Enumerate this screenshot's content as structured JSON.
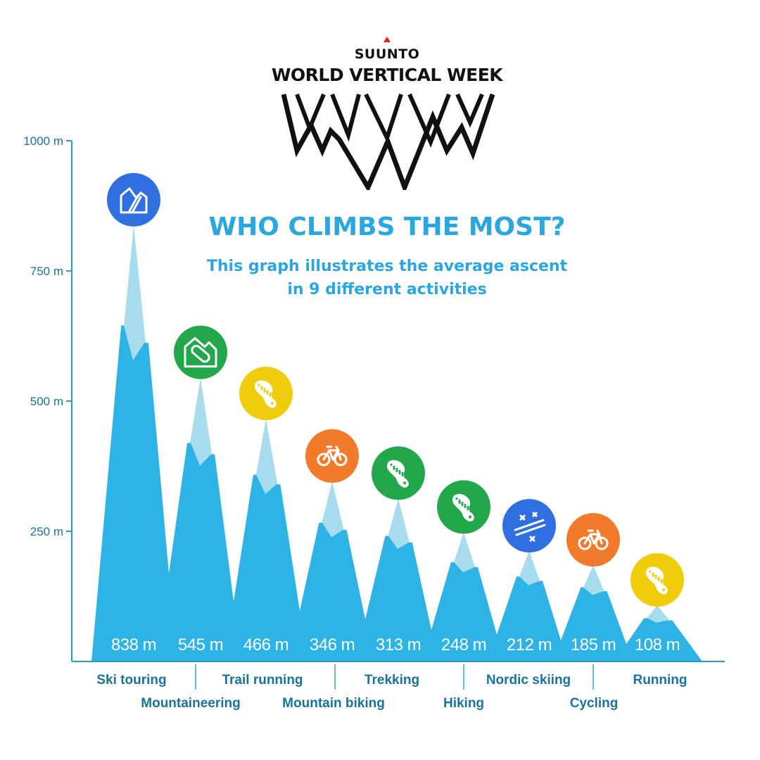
{
  "header": {
    "brand": "SUUNTO",
    "event_title": "WORLD VERTICAL WEEK",
    "headline": "WHO CLIMBS THE MOST?",
    "subtitle_line1": "This graph illustrates the average ascent",
    "subtitle_line2": "in 9 different activities"
  },
  "colors": {
    "mountain": "#2db3e6",
    "snow": "#a7dcef",
    "axis": "#2a9bd1",
    "label": "#17749d",
    "ski_touring": "#2f6fe0",
    "mountaineering": "#22a84a",
    "trail_running": "#f0cd0c",
    "mountain_biking": "#f27a2b",
    "trekking": "#22a84a",
    "hiking": "#22a84a",
    "nordic_skiing": "#2f6fe0",
    "cycling": "#f27a2b",
    "running": "#f0cd0c"
  },
  "chart_data": {
    "type": "area",
    "title": "WHO CLIMBS THE MOST?",
    "ylabel": "",
    "ylim": [
      0,
      1000
    ],
    "y_ticks": [
      250,
      500,
      750,
      1000
    ],
    "y_tick_labels": [
      "250 m",
      "500 m",
      "750 m",
      "1000 m"
    ],
    "categories": [
      "Ski touring",
      "Mountaineering",
      "Trail running",
      "Mountain biking",
      "Trekking",
      "Hiking",
      "Nordic skiing",
      "Cycling",
      "Running"
    ],
    "values": [
      838,
      545,
      466,
      346,
      313,
      248,
      212,
      185,
      108
    ],
    "value_labels": [
      "838 m",
      "545 m",
      "466 m",
      "346 m",
      "313 m",
      "248 m",
      "212 m",
      "185 m",
      "108 m"
    ],
    "icons": [
      "ski-touring-icon",
      "mountaineering-icon",
      "trail-running-icon",
      "mountain-biking-icon",
      "trekking-icon",
      "hiking-icon",
      "nordic-skiing-icon",
      "cycling-icon",
      "running-icon"
    ],
    "icon_colors": [
      "#2f6fe0",
      "#22a84a",
      "#f0cd0c",
      "#f27a2b",
      "#22a84a",
      "#22a84a",
      "#2f6fe0",
      "#f27a2b",
      "#f0cd0c"
    ],
    "grid": false,
    "legend": "none"
  }
}
